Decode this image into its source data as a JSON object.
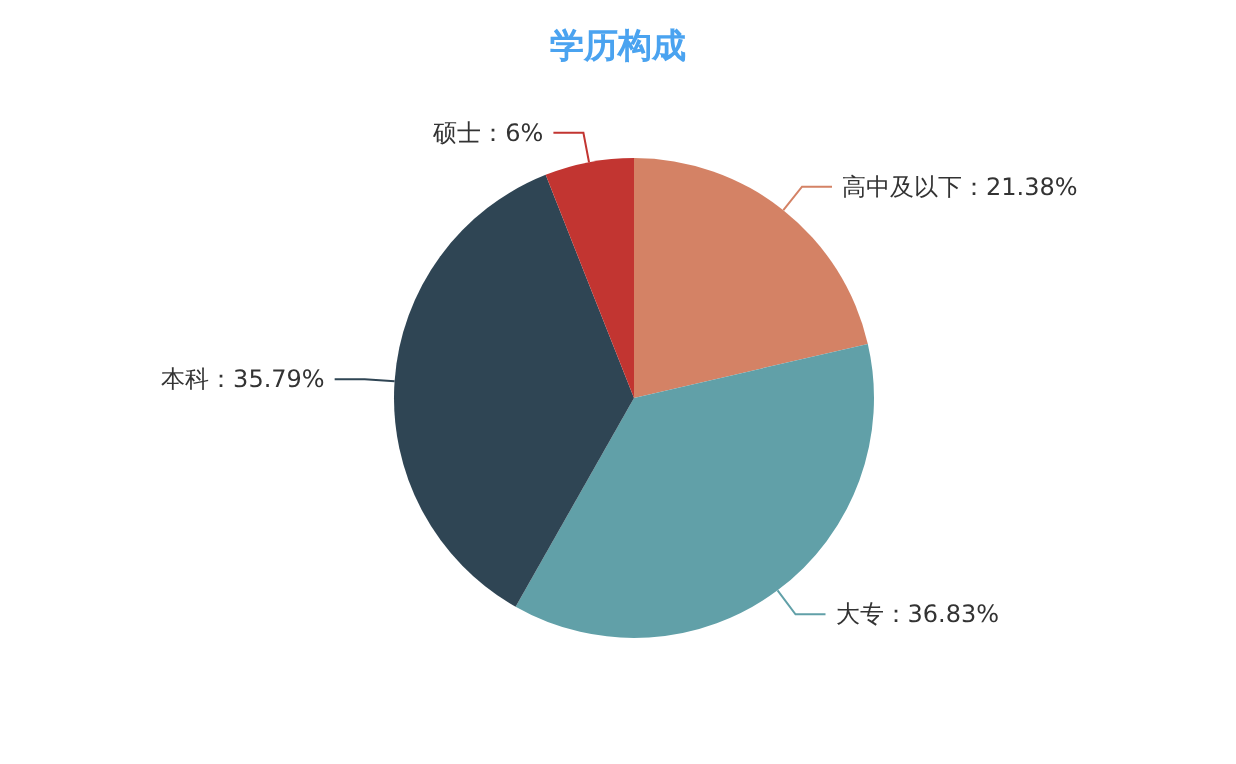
{
  "chart_data": {
    "type": "pie",
    "title": "学历构成",
    "categories": [
      "高中及以下",
      "大专",
      "本科",
      "硕士"
    ],
    "values": [
      21.38,
      36.83,
      35.79,
      6
    ],
    "value_labels": [
      "21.38%",
      "36.83%",
      "35.79%",
      "6%"
    ],
    "colors": [
      "#d48265",
      "#61a0a8",
      "#2f4554",
      "#c23531"
    ],
    "legend": false
  }
}
